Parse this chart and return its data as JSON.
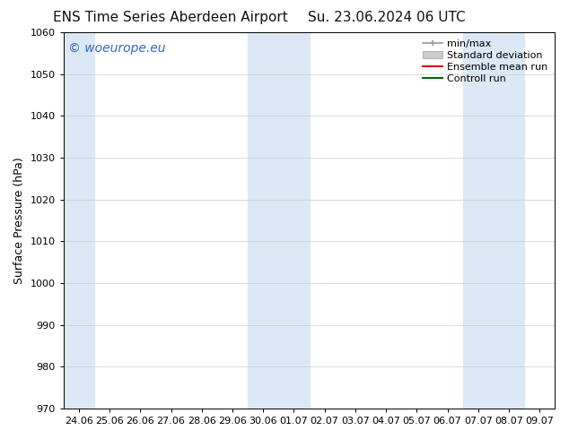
{
  "title_left": "ENS Time Series Aberdeen Airport",
  "title_right": "Su. 23.06.2024 06 UTC",
  "ylabel": "Surface Pressure (hPa)",
  "ylim": [
    970,
    1060
  ],
  "yticks": [
    970,
    980,
    990,
    1000,
    1010,
    1020,
    1030,
    1040,
    1050,
    1060
  ],
  "xtick_labels": [
    "24.06",
    "25.06",
    "26.06",
    "27.06",
    "28.06",
    "29.06",
    "30.06",
    "01.07",
    "02.07",
    "03.07",
    "04.07",
    "05.07",
    "06.07",
    "07.07",
    "08.07",
    "09.07"
  ],
  "xtick_positions": [
    0,
    1,
    2,
    3,
    4,
    5,
    6,
    7,
    8,
    9,
    10,
    11,
    12,
    13,
    14,
    15
  ],
  "shaded_bands": [
    {
      "xstart": -0.5,
      "xend": 0.5,
      "color": "#dce8f5"
    },
    {
      "xstart": 5.5,
      "xend": 7.5,
      "color": "#dce8f5"
    },
    {
      "xstart": 12.5,
      "xend": 14.5,
      "color": "#dce8f5"
    }
  ],
  "watermark": "© woeurope.eu",
  "watermark_color": "#3366bb",
  "background_color": "#ffffff",
  "legend_items": [
    {
      "label": "min/max",
      "color": "#999999",
      "style": "minmax"
    },
    {
      "label": "Standard deviation",
      "color": "#cccccc",
      "style": "bar"
    },
    {
      "label": "Ensemble mean run",
      "color": "#dd0000",
      "style": "line"
    },
    {
      "label": "Controll run",
      "color": "#006600",
      "style": "line"
    }
  ],
  "title_fontsize": 11,
  "axis_fontsize": 9,
  "tick_fontsize": 8,
  "watermark_fontsize": 10,
  "legend_fontsize": 8
}
